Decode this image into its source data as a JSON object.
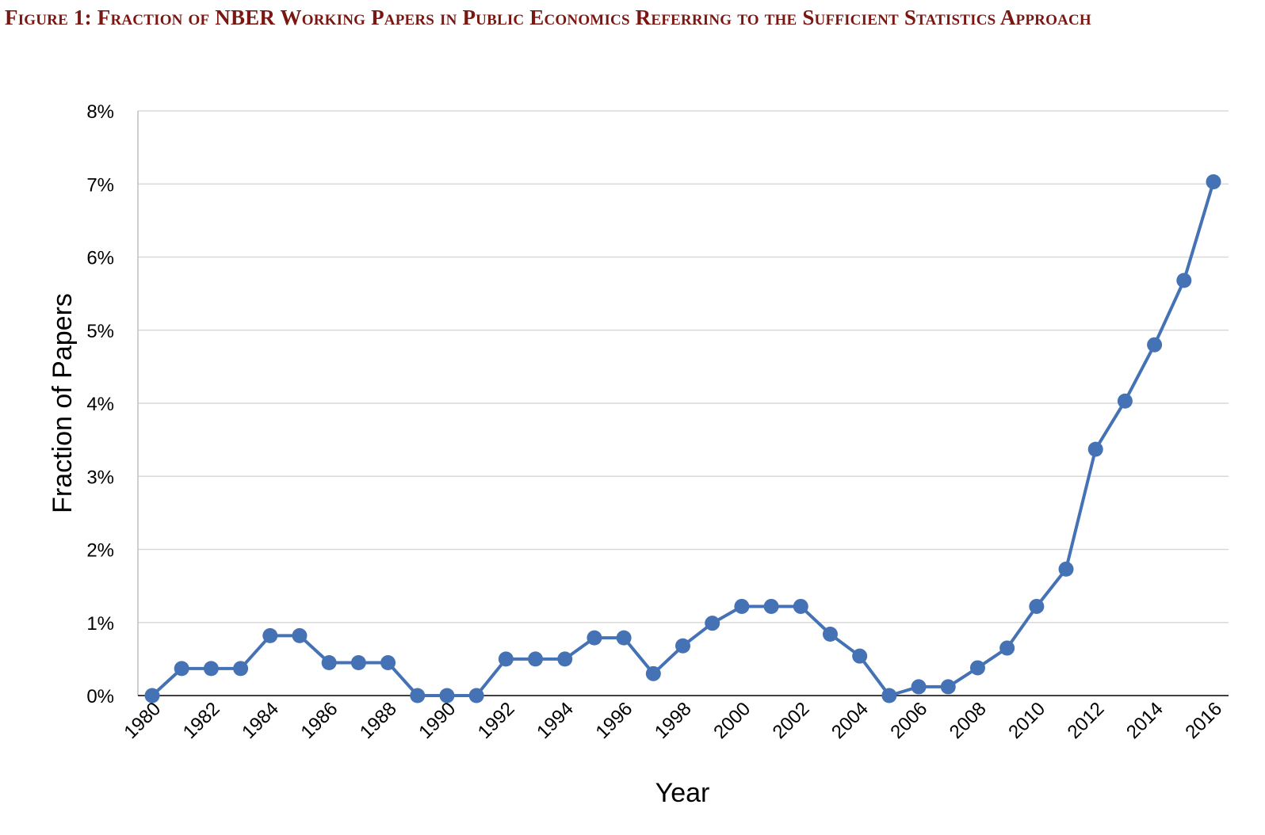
{
  "caption": "Figure 1: Fraction of NBER Working Papers in Public Economics Referring to the Sufficient Statistics Approach",
  "colors": {
    "series": "#4472b4",
    "grid": "#d9d9d9",
    "axis": "#000000",
    "caption": "#7a1712"
  },
  "chart_data": {
    "type": "line",
    "title": "",
    "xlabel": "Year",
    "ylabel": "Fraction of Papers",
    "ylim": [
      0,
      8
    ],
    "y_unit": "%",
    "y_ticks": [
      "0%",
      "1%",
      "2%",
      "3%",
      "4%",
      "5%",
      "6%",
      "7%",
      "8%"
    ],
    "x_ticks": [
      "1980",
      "1982",
      "1984",
      "1986",
      "1988",
      "1990",
      "1992",
      "1994",
      "1996",
      "1998",
      "2000",
      "2002",
      "2004",
      "2006",
      "2008",
      "2010",
      "2012",
      "2014",
      "2016"
    ],
    "grid": "horizontal",
    "markers": "circle",
    "x": [
      1980,
      1981,
      1982,
      1983,
      1984,
      1985,
      1986,
      1987,
      1988,
      1989,
      1990,
      1991,
      1992,
      1993,
      1994,
      1995,
      1996,
      1997,
      1998,
      1999,
      2000,
      2001,
      2002,
      2003,
      2004,
      2005,
      2006,
      2007,
      2008,
      2009,
      2010,
      2011,
      2012,
      2013,
      2014,
      2015,
      2016
    ],
    "series": [
      {
        "values": [
          0,
          0.37,
          0.37,
          0.37,
          0.82,
          0.82,
          0.45,
          0.45,
          0.45,
          0,
          0,
          0,
          0.5,
          0.5,
          0.5,
          0.79,
          0.79,
          0.3,
          0.68,
          0.99,
          1.22,
          1.22,
          1.22,
          0.84,
          0.54,
          0,
          0.12,
          0.12,
          0.38,
          0.65,
          1.22,
          1.73,
          3.37,
          4.03,
          4.8,
          5.68,
          7.03
        ]
      }
    ]
  }
}
